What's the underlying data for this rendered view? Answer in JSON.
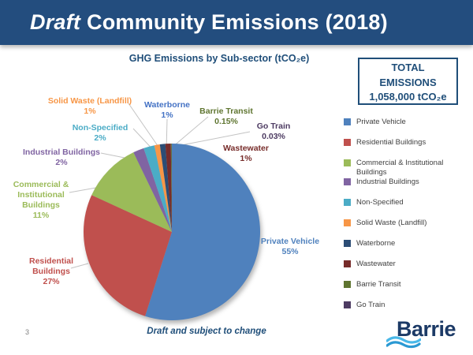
{
  "slide": {
    "header": {
      "title_emphasis": "Draft",
      "title_rest": "Community Emissions (2018)"
    },
    "total_box": {
      "line1": "TOTAL",
      "line2": "EMISSIONS",
      "line3": "1,058,000 tCO₂e"
    },
    "footer": {
      "note": "Draft and subject to change",
      "page_number": "3",
      "logo_text": "Barrie"
    }
  },
  "chart_data": {
    "type": "pie",
    "title": "GHG Emissions by Sub-sector (tCO₂e)",
    "total_label": "TOTAL EMISSIONS 1,058,000 tCO₂e",
    "total_value": 1058000,
    "unit": "tCO₂e",
    "legend_position": "right",
    "start_angle": "12-oclock-clockwise",
    "series": [
      {
        "name": "Private Vehicle",
        "value": 55,
        "label": "55%",
        "color": "#4F81BD",
        "label_lines": [
          "Private Vehicle",
          "55%"
        ],
        "legend_lines": [
          "Private Vehicle"
        ]
      },
      {
        "name": "Residential Buildings",
        "value": 27,
        "label": "27%",
        "color": "#C0504D",
        "label_lines": [
          "Residential",
          "Buildings",
          "27%"
        ],
        "legend_lines": [
          "Residential Buildings"
        ]
      },
      {
        "name": "Commercial & Institutional Buildings",
        "value": 11,
        "label": "11%",
        "color": "#9BBB59",
        "label_lines": [
          "Commercial &",
          "Institutional",
          "Buildings",
          "11%"
        ],
        "legend_lines": [
          "Commercial & Institutional",
          "Buildings"
        ]
      },
      {
        "name": "Industrial Buildings",
        "value": 2,
        "label": "2%",
        "color": "#8064A2",
        "label_lines": [
          "Industrial Buildings",
          "2%"
        ],
        "legend_lines": [
          "Industrial Buildings"
        ]
      },
      {
        "name": "Non-Specified",
        "value": 2,
        "label": "2%",
        "color": "#4BACC6",
        "label_lines": [
          "Non-Specified",
          "2%"
        ],
        "legend_lines": [
          "Non-Specified"
        ]
      },
      {
        "name": "Solid Waste (Landfill)",
        "value": 1,
        "label": "1%",
        "color": "#F79646",
        "label_lines": [
          "Solid Waste (Landfill)",
          "1%"
        ],
        "legend_lines": [
          "Solid Waste (Landfill)"
        ]
      },
      {
        "name": "Waterborne",
        "value": 1,
        "label": "1%",
        "color": "#2C4D75",
        "label_color": "#4472C4",
        "label_lines": [
          "Waterborne",
          "1%"
        ],
        "legend_lines": [
          "Waterborne"
        ]
      },
      {
        "name": "Wastewater",
        "value": 1,
        "label": "1%",
        "color": "#772C2A",
        "label_lines": [
          "Wastewater",
          "1%"
        ],
        "legend_lines": [
          "Wastewater"
        ]
      },
      {
        "name": "Barrie Transit",
        "value": 0.15,
        "label": "0.15%",
        "color": "#5F7530",
        "label_lines": [
          "Barrie Transit",
          "0.15%"
        ],
        "legend_lines": [
          "Barrie Transit"
        ]
      },
      {
        "name": "Go Train",
        "value": 0.03,
        "label": "0.03%",
        "color": "#4D3B62",
        "label_lines": [
          "Go Train",
          "0.03%"
        ],
        "legend_lines": [
          "Go Train"
        ]
      }
    ]
  }
}
